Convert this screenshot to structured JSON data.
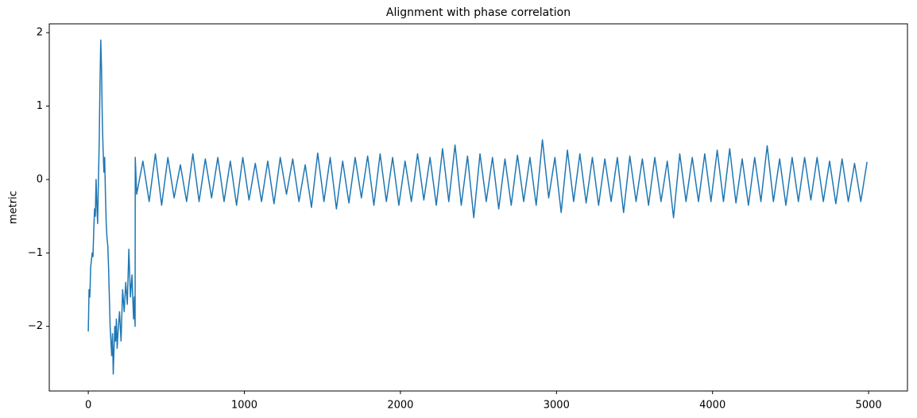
{
  "chart_data": {
    "type": "line",
    "title": "Alignment with phase correlation",
    "ylabel": "metric",
    "color": "#1f77b4",
    "x": [
      0,
      5,
      10,
      15,
      20,
      25,
      30,
      35,
      40,
      45,
      50,
      55,
      60,
      65,
      70,
      75,
      80,
      85,
      90,
      95,
      100,
      105,
      110,
      115,
      120,
      125,
      130,
      135,
      140,
      145,
      150,
      155,
      160,
      165,
      170,
      175,
      180,
      185,
      190,
      200,
      210,
      220,
      230,
      240,
      250,
      260,
      270,
      280,
      290,
      295,
      300,
      301,
      310,
      350,
      390,
      430,
      470,
      510,
      550,
      590,
      630,
      670,
      710,
      750,
      790,
      830,
      870,
      910,
      950,
      990,
      1030,
      1070,
      1110,
      1150,
      1190,
      1230,
      1270,
      1310,
      1350,
      1390,
      1430,
      1470,
      1510,
      1550,
      1590,
      1630,
      1670,
      1710,
      1750,
      1790,
      1830,
      1870,
      1910,
      1950,
      1990,
      2030,
      2070,
      2110,
      2150,
      2190,
      2230,
      2270,
      2310,
      2350,
      2390,
      2430,
      2470,
      2510,
      2550,
      2590,
      2630,
      2670,
      2710,
      2750,
      2790,
      2830,
      2870,
      2910,
      2950,
      2990,
      3030,
      3070,
      3110,
      3150,
      3190,
      3230,
      3270,
      3310,
      3350,
      3390,
      3430,
      3470,
      3510,
      3550,
      3590,
      3630,
      3670,
      3710,
      3750,
      3790,
      3830,
      3870,
      3910,
      3950,
      3990,
      4030,
      4070,
      4110,
      4150,
      4190,
      4230,
      4270,
      4310,
      4350,
      4390,
      4430,
      4470,
      4510,
      4550,
      4590,
      4630,
      4670,
      4710,
      4750,
      4790,
      4830,
      4870,
      4910,
      4950,
      4990
    ],
    "values": [
      -2.07,
      -1.5,
      -1.6,
      -1.2,
      -1.1,
      -1.0,
      -1.05,
      -0.7,
      -0.4,
      -0.5,
      0.0,
      -0.35,
      -0.6,
      0.0,
      0.5,
      1.3,
      1.9,
      1.5,
      0.8,
      0.4,
      0.1,
      0.3,
      -0.2,
      -0.6,
      -0.8,
      -0.9,
      -1.2,
      -1.6,
      -2.0,
      -2.2,
      -2.4,
      -2.1,
      -2.65,
      -2.3,
      -2.0,
      -2.2,
      -1.9,
      -2.3,
      -2.1,
      -1.8,
      -2.2,
      -1.5,
      -1.8,
      -1.4,
      -1.7,
      -0.95,
      -1.6,
      -1.3,
      -1.9,
      -1.6,
      -2.0,
      0.3,
      -0.2,
      0.25,
      -0.3,
      0.35,
      -0.35,
      0.3,
      -0.25,
      0.2,
      -0.3,
      0.35,
      -0.3,
      0.28,
      -0.25,
      0.3,
      -0.3,
      0.25,
      -0.35,
      0.3,
      -0.28,
      0.22,
      -0.3,
      0.25,
      -0.33,
      0.3,
      -0.2,
      0.28,
      -0.3,
      0.2,
      -0.38,
      0.36,
      -0.3,
      0.3,
      -0.4,
      0.25,
      -0.32,
      0.3,
      -0.25,
      0.32,
      -0.35,
      0.35,
      -0.3,
      0.3,
      -0.35,
      0.25,
      -0.3,
      0.35,
      -0.28,
      0.3,
      -0.35,
      0.42,
      -0.3,
      0.47,
      -0.35,
      0.32,
      -0.52,
      0.35,
      -0.3,
      0.3,
      -0.4,
      0.28,
      -0.35,
      0.33,
      -0.3,
      0.3,
      -0.35,
      0.54,
      -0.25,
      0.3,
      -0.45,
      0.4,
      -0.3,
      0.35,
      -0.32,
      0.3,
      -0.35,
      0.28,
      -0.3,
      0.3,
      -0.45,
      0.32,
      -0.3,
      0.28,
      -0.35,
      0.3,
      -0.3,
      0.25,
      -0.52,
      0.35,
      -0.3,
      0.3,
      -0.3,
      0.35,
      -0.3,
      0.4,
      -0.3,
      0.42,
      -0.32,
      0.28,
      -0.35,
      0.3,
      -0.3,
      0.46,
      -0.3,
      0.28,
      -0.35,
      0.3,
      -0.3,
      0.3,
      -0.28,
      0.3,
      -0.3,
      0.25,
      -0.33,
      0.28,
      -0.3,
      0.22,
      -0.3,
      0.24
    ],
    "xlim": [
      -250,
      5249
    ],
    "xticks": [
      0,
      1000,
      2000,
      3000,
      4000,
      5000
    ],
    "ylim": [
      -2.88,
      2.12
    ],
    "yticks": [
      {
        "value": -2,
        "label": "−2"
      },
      {
        "value": -1,
        "label": "−1"
      },
      0,
      1,
      2
    ]
  }
}
